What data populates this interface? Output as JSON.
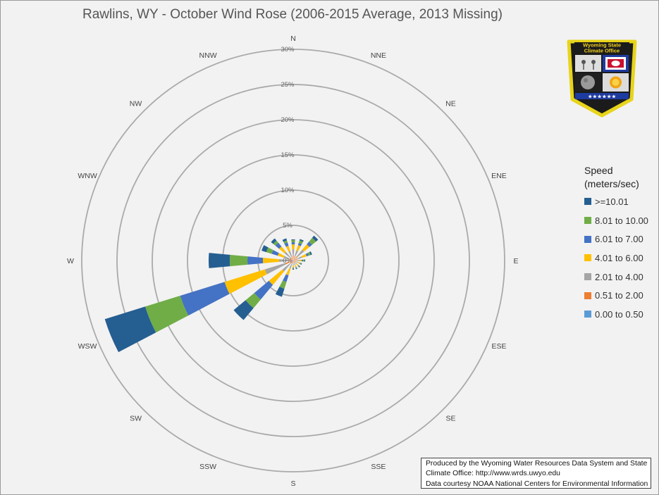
{
  "chart_data": {
    "type": "wind-rose",
    "title": "Rawlins, WY - October Wind Rose (2006-2015 Average, 2013 Missing)",
    "directions": [
      "N",
      "NNE",
      "NE",
      "ENE",
      "E",
      "ESE",
      "SE",
      "SSE",
      "S",
      "SSW",
      "SW",
      "WSW",
      "W",
      "WNW",
      "NW",
      "NNW"
    ],
    "radial_axis": {
      "min": 0,
      "max": 30,
      "step": 5,
      "tick_labels": [
        "0%",
        "5%",
        "10%",
        "15%",
        "20%",
        "25%",
        "30%"
      ]
    },
    "legend_title": "Speed\n(meters/sec)",
    "legend_position": "right",
    "bins": [
      "0.00 to 0.50",
      "0.51 to 2.00",
      "2.01 to 4.00",
      "4.01 to 6.00",
      "6.01 to 7.00",
      "8.01 to 10.00",
      ">=10.01"
    ],
    "bin_colors": [
      "#5b9bd5",
      "#ed7d31",
      "#a5a5a5",
      "#ffc000",
      "#4472c4",
      "#70ad47",
      "#255e91"
    ],
    "cumulative_percent": {
      "N": [
        0.1,
        0.7,
        1.6,
        2.3,
        2.6,
        2.9,
        3.0
      ],
      "NNE": [
        0.1,
        0.7,
        1.5,
        2.3,
        2.6,
        3.0,
        3.2
      ],
      "NE": [
        0.1,
        0.8,
        2.0,
        3.0,
        3.5,
        4.2,
        4.6
      ],
      "ENE": [
        0.1,
        0.6,
        1.3,
        2.0,
        2.3,
        2.6,
        2.8
      ],
      "E": [
        0.1,
        0.5,
        0.9,
        1.2,
        1.4,
        1.6,
        1.7
      ],
      "ESE": [
        0.1,
        0.4,
        0.7,
        1.0,
        1.1,
        1.2,
        1.3
      ],
      "SE": [
        0.1,
        0.4,
        0.7,
        1.0,
        1.1,
        1.2,
        1.3
      ],
      "SSE": [
        0.1,
        0.4,
        0.7,
        1.0,
        1.1,
        1.2,
        1.3
      ],
      "S": [
        0.1,
        0.4,
        0.7,
        1.0,
        1.1,
        1.2,
        1.3
      ],
      "SSW": [
        0.1,
        0.5,
        1.2,
        2.2,
        3.2,
        4.2,
        5.4
      ],
      "SW": [
        0.1,
        0.6,
        2.0,
        4.5,
        7.2,
        8.8,
        11.0
      ],
      "WSW": [
        0.2,
        1.2,
        4.2,
        10.2,
        16.8,
        22.0,
        28.0
      ],
      "W": [
        0.1,
        0.7,
        2.0,
        4.3,
        6.5,
        9.0,
        12.0
      ],
      "WNW": [
        0.1,
        0.6,
        1.4,
        2.3,
        3.2,
        4.0,
        4.7
      ],
      "NW": [
        0.1,
        0.6,
        1.6,
        2.6,
        3.3,
        3.7,
        4.1
      ],
      "NNW": [
        0.1,
        0.5,
        1.4,
        2.2,
        2.7,
        3.0,
        3.3
      ]
    }
  },
  "logo": {
    "text_line1": "Wyoming State",
    "text_line2": "Climate Office",
    "stars": "★★★★★★"
  },
  "credits": {
    "line1": "Produced by the Wyoming Water Resources Data System and State",
    "line2": "Climate Office: http://www.wrds.uwyo.edu",
    "line3": "Data courtesy NOAA National Centers for Environmental Information"
  }
}
